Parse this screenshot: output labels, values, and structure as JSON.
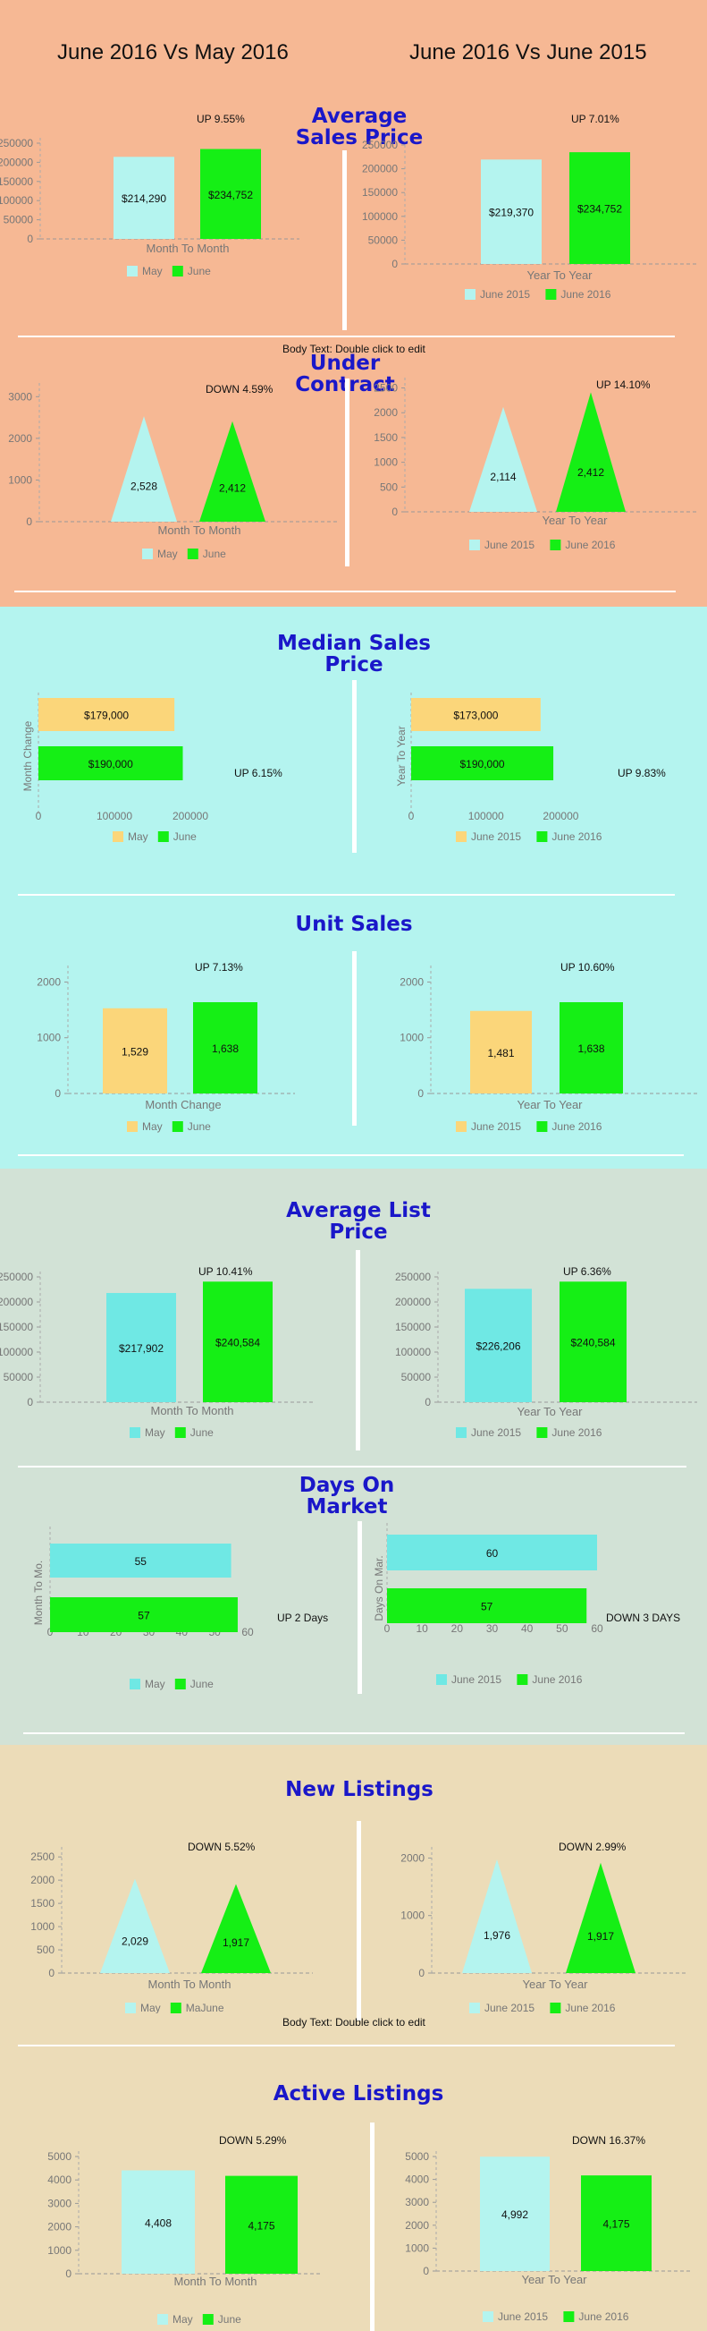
{
  "header": {
    "left": "June 2016 Vs May 2016",
    "right": "June 2016 Vs June 2015"
  },
  "notes": {
    "body_text": "Body Text: Double click to edit"
  },
  "colors": {
    "orange_bg": "#f6b894",
    "cyan_bg": "#b4f4ef",
    "sage_bg": "#d2e2d6",
    "beige_bg": "#ecdcb8",
    "aqua": "#b4f4ef",
    "aqua2": "#6fe8e4",
    "green": "#15ef15",
    "yellow": "#fbd67a",
    "title": "#1a17c9"
  },
  "sections": {
    "average_sales_price": {
      "title": "Average\nSales Price"
    },
    "under_contract": {
      "title": "Under\nContract"
    },
    "median_sales_price": {
      "title": "Median Sales\nPrice"
    },
    "unit_sales": {
      "title": "Unit Sales"
    },
    "average_list_price": {
      "title": "Average List\nPrice"
    },
    "days_on_market": {
      "title": "Days On\nMarket"
    },
    "new_listings": {
      "title": "New Listings"
    },
    "active_listings": {
      "title": "Active Listings"
    }
  },
  "chart_data": [
    {
      "id": "c1",
      "type": "bar",
      "annotation": "UP 9.55%",
      "xlabel": "Month To Month",
      "ylabel": "",
      "categories": [
        "May",
        "June"
      ],
      "values": [
        214290,
        234752
      ],
      "value_labels": [
        "$214,290",
        "$234,752"
      ],
      "legend": [
        "May",
        "June"
      ],
      "colors": [
        "#b4f4ef",
        "#15ef15"
      ],
      "yticks": [
        0,
        50000,
        100000,
        150000,
        200000,
        250000
      ],
      "ylim": [
        0,
        250000
      ],
      "grid": false,
      "legend_position": "bottom"
    },
    {
      "id": "c2",
      "type": "bar",
      "annotation": "UP 7.01%",
      "xlabel": "Year To Year",
      "ylabel": "",
      "categories": [
        "June 2015",
        "June 2016"
      ],
      "values": [
        219370,
        234752
      ],
      "value_labels": [
        "$219,370",
        "$234,752"
      ],
      "legend": [
        "June 2015",
        "June 2016"
      ],
      "colors": [
        "#b4f4ef",
        "#15ef15"
      ],
      "yticks": [
        0,
        50000,
        100000,
        150000,
        200000,
        250000
      ],
      "ylim": [
        0,
        250000
      ],
      "grid": false,
      "legend_position": "bottom"
    },
    {
      "id": "c3",
      "type": "triangle",
      "annotation": "DOWN 4.59%",
      "xlabel": "Month To Month",
      "ylabel": "",
      "categories": [
        "May",
        "June"
      ],
      "values": [
        2528,
        2412
      ],
      "value_labels": [
        "2,528",
        "2,412"
      ],
      "legend": [
        "May",
        "June"
      ],
      "colors": [
        "#b4f4ef",
        "#15ef15"
      ],
      "yticks": [
        0,
        1000,
        2000,
        3000
      ],
      "ylim": [
        0,
        3200
      ],
      "grid": false,
      "legend_position": "bottom"
    },
    {
      "id": "c4",
      "type": "triangle",
      "annotation": "UP 14.10%",
      "xlabel": "Year To Year",
      "ylabel": "",
      "categories": [
        "June 2015",
        "June 2016"
      ],
      "values": [
        2114,
        2412
      ],
      "value_labels": [
        "2,114",
        "2,412"
      ],
      "legend": [
        "June 2015",
        "June 2016"
      ],
      "colors": [
        "#b4f4ef",
        "#15ef15"
      ],
      "yticks": [
        0,
        500,
        1000,
        1500,
        2000,
        2500
      ],
      "ylim": [
        0,
        2600
      ],
      "grid": false,
      "legend_position": "bottom"
    },
    {
      "id": "c5",
      "type": "hbar",
      "annotation": "UP 6.15%",
      "xlabel": "",
      "ylabel": "Month Change",
      "categories": [
        "May",
        "June"
      ],
      "values": [
        179000,
        190000
      ],
      "value_labels": [
        "$179,000",
        "$190,000"
      ],
      "legend": [
        "May",
        "June"
      ],
      "colors": [
        "#fbd67a",
        "#15ef15"
      ],
      "xticks": [
        0,
        100000,
        200000
      ],
      "xlim": [
        0,
        220000
      ],
      "grid": false,
      "legend_position": "bottom"
    },
    {
      "id": "c6",
      "type": "hbar",
      "annotation": "UP 9.83%",
      "xlabel": "",
      "ylabel": "Year To Year",
      "categories": [
        "June 2015",
        "June 2016"
      ],
      "values": [
        173000,
        190000
      ],
      "value_labels": [
        "$173,000",
        "$190,000"
      ],
      "legend": [
        "June 2015",
        "June 2016"
      ],
      "colors": [
        "#fbd67a",
        "#15ef15"
      ],
      "xticks": [
        0,
        100000,
        200000
      ],
      "xlim": [
        0,
        215000
      ],
      "grid": false,
      "legend_position": "bottom"
    },
    {
      "id": "c7",
      "type": "bar",
      "annotation": "UP 7.13%",
      "xlabel": "Month Change",
      "ylabel": "",
      "categories": [
        "May",
        "June"
      ],
      "values": [
        1529,
        1638
      ],
      "value_labels": [
        "1,529",
        "1,638"
      ],
      "legend": [
        "May",
        "June"
      ],
      "colors": [
        "#fbd67a",
        "#15ef15"
      ],
      "yticks": [
        0,
        1000,
        2000
      ],
      "ylim": [
        0,
        2200
      ],
      "grid": false,
      "legend_position": "bottom"
    },
    {
      "id": "c8",
      "type": "bar",
      "annotation": "UP 10.60%",
      "xlabel": "Year To Year",
      "ylabel": "",
      "categories": [
        "June 2015",
        "June 2016"
      ],
      "values": [
        1481,
        1638
      ],
      "value_labels": [
        "1,481",
        "1,638"
      ],
      "legend": [
        "June 2015",
        "June 2016"
      ],
      "colors": [
        "#fbd67a",
        "#15ef15"
      ],
      "yticks": [
        0,
        1000,
        2000
      ],
      "ylim": [
        0,
        2200
      ],
      "grid": false,
      "legend_position": "bottom"
    },
    {
      "id": "c9",
      "type": "bar",
      "annotation": "UP 10.41%",
      "xlabel": "Month To Month",
      "ylabel": "",
      "categories": [
        "May",
        "June"
      ],
      "values": [
        217902,
        240584
      ],
      "value_labels": [
        "$217,902",
        "$240,584"
      ],
      "legend": [
        "May",
        "June"
      ],
      "colors": [
        "#6fe8e4",
        "#15ef15"
      ],
      "yticks": [
        0,
        50000,
        100000,
        150000,
        200000,
        250000
      ],
      "ylim": [
        0,
        250000
      ],
      "grid": false,
      "legend_position": "bottom"
    },
    {
      "id": "c10",
      "type": "bar",
      "annotation": "UP 6.36%",
      "xlabel": "Year To Year",
      "ylabel": "",
      "categories": [
        "June 2015",
        "June 2016"
      ],
      "values": [
        226206,
        240584
      ],
      "value_labels": [
        "$226,206",
        "$240,584"
      ],
      "legend": [
        "June 2015",
        "June 2016"
      ],
      "colors": [
        "#6fe8e4",
        "#15ef15"
      ],
      "yticks": [
        0,
        50000,
        100000,
        150000,
        200000,
        250000
      ],
      "ylim": [
        0,
        250000
      ],
      "grid": false,
      "legend_position": "bottom"
    },
    {
      "id": "c11",
      "type": "hbar",
      "annotation": "UP 2 Days",
      "xlabel": "",
      "ylabel": "Month To Mo.",
      "categories": [
        "May",
        "June"
      ],
      "values": [
        55,
        57
      ],
      "value_labels": [
        "55",
        "57"
      ],
      "legend": [
        "May",
        "June"
      ],
      "colors": [
        "#6fe8e4",
        "#15ef15"
      ],
      "xticks": [
        0,
        10,
        20,
        30,
        40,
        50,
        60
      ],
      "xlim": [
        0,
        60
      ],
      "grid": false,
      "legend_position": "bottom"
    },
    {
      "id": "c12",
      "type": "hbar",
      "annotation": "DOWN 3 DAYS",
      "xlabel": "",
      "ylabel": "Days On Mar.",
      "categories": [
        "June 2015",
        "June 2016"
      ],
      "values": [
        60,
        57
      ],
      "value_labels": [
        "60",
        "57"
      ],
      "legend": [
        "June 2015",
        "June 2016"
      ],
      "colors": [
        "#6fe8e4",
        "#15ef15"
      ],
      "xticks": [
        0,
        10,
        20,
        30,
        40,
        50,
        60
      ],
      "xlim": [
        0,
        60
      ],
      "grid": false,
      "legend_position": "bottom"
    },
    {
      "id": "c13",
      "type": "triangle",
      "annotation": "DOWN 5.52%",
      "xlabel": "Month To Month",
      "ylabel": "",
      "categories": [
        "May",
        "June"
      ],
      "values": [
        2029,
        1917
      ],
      "value_labels": [
        "2,029",
        "1,917"
      ],
      "legend": [
        "May",
        "MaJune"
      ],
      "colors": [
        "#b4f4ef",
        "#15ef15"
      ],
      "yticks": [
        0,
        500,
        1000,
        1500,
        2000,
        2500
      ],
      "ylim": [
        0,
        2600
      ],
      "grid": false,
      "legend_position": "bottom"
    },
    {
      "id": "c14",
      "type": "triangle",
      "annotation": "DOWN 2.99%",
      "xlabel": "Year To Year",
      "ylabel": "",
      "categories": [
        "June 2015",
        "June 2016"
      ],
      "values": [
        1976,
        1917
      ],
      "value_labels": [
        "1,976",
        "1,917"
      ],
      "legend": [
        "June 2015",
        "June 2016"
      ],
      "colors": [
        "#b4f4ef",
        "#15ef15"
      ],
      "yticks": [
        0,
        1000,
        2000
      ],
      "ylim": [
        0,
        2100
      ],
      "grid": false,
      "legend_position": "bottom"
    },
    {
      "id": "c15",
      "type": "bar",
      "annotation": "DOWN 5.29%",
      "xlabel": "Month To Month",
      "ylabel": "",
      "categories": [
        "May",
        "June"
      ],
      "values": [
        4408,
        4175
      ],
      "value_labels": [
        "4,408",
        "4,175"
      ],
      "legend": [
        "May",
        "June"
      ],
      "colors": [
        "#b4f4ef",
        "#15ef15"
      ],
      "yticks": [
        0,
        1000,
        2000,
        3000,
        4000,
        5000
      ],
      "ylim": [
        0,
        5000
      ],
      "grid": false,
      "legend_position": "bottom"
    },
    {
      "id": "c16",
      "type": "bar",
      "annotation": "DOWN 16.37%",
      "xlabel": "Year To Year",
      "ylabel": "",
      "categories": [
        "June 2015",
        "June 2016"
      ],
      "values": [
        4992,
        4175
      ],
      "value_labels": [
        "4,992",
        "4,175"
      ],
      "legend": [
        "June 2015",
        "June 2016"
      ],
      "colors": [
        "#b4f4ef",
        "#15ef15"
      ],
      "yticks": [
        0,
        1000,
        2000,
        3000,
        4000,
        5000
      ],
      "ylim": [
        0,
        5000
      ],
      "grid": false,
      "legend_position": "bottom"
    }
  ]
}
